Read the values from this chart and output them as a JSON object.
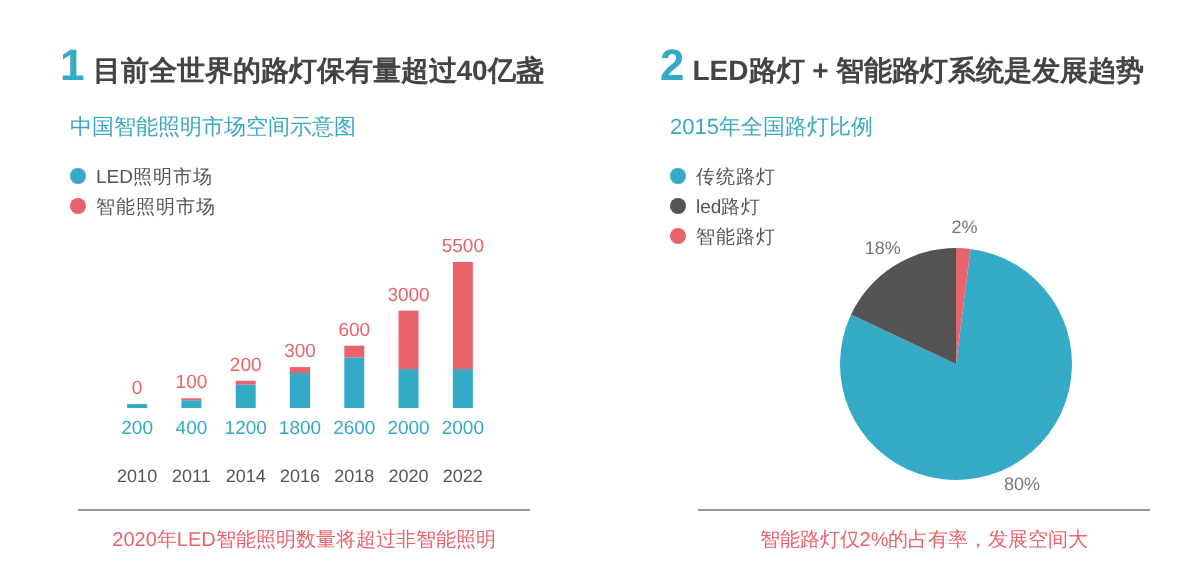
{
  "chart_data": [
    {
      "type": "bar",
      "stacked": true,
      "title": "1 目前全世界的路灯保有量超过40亿盏",
      "subtitle": "中国智能照明市场空间示意图",
      "categories": [
        "2010",
        "2011",
        "2014",
        "2016",
        "2018",
        "2020",
        "2022"
      ],
      "series": [
        {
          "name": "LED照明市场",
          "color": "#35aac6",
          "values": [
            200,
            400,
            1200,
            1800,
            2600,
            2000,
            2000
          ]
        },
        {
          "name": "智能照明市场",
          "color": "#e8636b",
          "values": [
            0,
            100,
            200,
            300,
            600,
            3000,
            5500
          ]
        }
      ],
      "data_labels": true,
      "legend": "top left",
      "annotations": [
        "2020年LED智能照明数量将超过非智能照明"
      ]
    },
    {
      "type": "pie",
      "title": "2 LED路灯 + 智能路灯系统是发展趋势",
      "subtitle": "2015年全国路灯比例",
      "categories": [
        "传统路灯",
        "led路灯",
        "智能路灯"
      ],
      "values": [
        80,
        18,
        2
      ],
      "colors": [
        "#35aac6",
        "#555354",
        "#e8636b"
      ],
      "value_labels": [
        "80%",
        "18%",
        "2%"
      ],
      "legend": "top left",
      "annotations": [
        "智能路灯仅2%的占有率，发展空间大"
      ]
    }
  ]
}
